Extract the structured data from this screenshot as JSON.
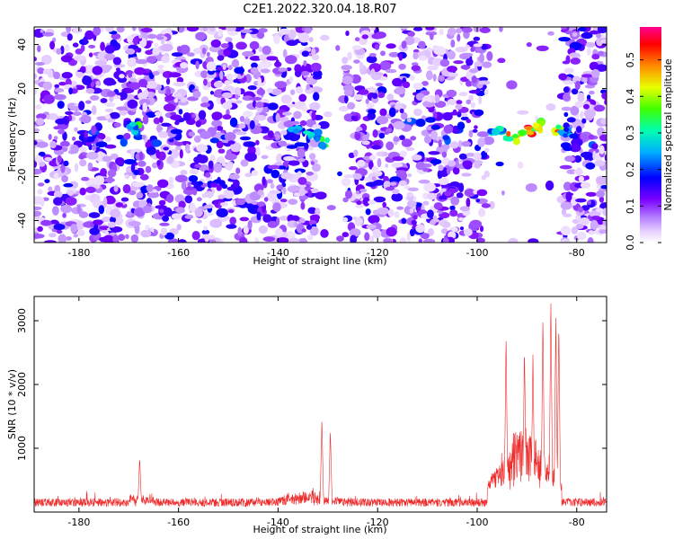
{
  "title": "C2E1.2022.320.04.18.R07",
  "chart_data": [
    {
      "type": "heatmap",
      "xlabel": "Height of straight line (km)",
      "ylabel": "Frequency (Hz)",
      "xlim": [
        -189,
        -74
      ],
      "ylim": [
        -50,
        48
      ],
      "xticks": [
        -180,
        -160,
        -140,
        -120,
        -100,
        -80
      ],
      "yticks": [
        -40,
        -20,
        0,
        20,
        40
      ],
      "colorbar": {
        "label": "Normalized spectral amplitude",
        "range": [
          0.0,
          0.59
        ],
        "ticks": [
          0.0,
          0.1,
          0.2,
          0.3,
          0.4,
          0.5
        ]
      },
      "gaps_km": [
        [
          -132,
          -127
        ],
        [
          -98,
          -83
        ]
      ],
      "hotspots": [
        {
          "x": -168.5,
          "y": 2,
          "level": 0.35
        },
        {
          "x": -152,
          "y": -24,
          "level": 0.18
        },
        {
          "x": -131,
          "y": -4,
          "level": 0.38
        },
        {
          "x": -133,
          "y": 0,
          "level": 0.3
        },
        {
          "x": -137,
          "y": 1,
          "level": 0.25
        },
        {
          "x": -106,
          "y": -28,
          "level": 0.15
        },
        {
          "x": -96,
          "y": 0,
          "level": 0.3
        },
        {
          "x": -93,
          "y": -2,
          "level": 0.5
        },
        {
          "x": -90,
          "y": 1,
          "level": 0.55
        },
        {
          "x": -87,
          "y": 3,
          "level": 0.45
        },
        {
          "x": -84,
          "y": 1,
          "level": 0.5
        },
        {
          "x": -82,
          "y": 0,
          "level": 0.3
        }
      ]
    },
    {
      "type": "line",
      "xlabel": "Height of straight line (km)",
      "ylabel": "SNR (10 * v/v)",
      "xlim": [
        -189,
        -74
      ],
      "ylim": [
        0,
        3380
      ],
      "xticks": [
        -180,
        -160,
        -140,
        -120,
        -100,
        -80
      ],
      "yticks": [
        1000,
        2000,
        3000
      ],
      "color": "#ee2b2b",
      "baseline": 150,
      "peaks": [
        {
          "x": -167.8,
          "y": 850
        },
        {
          "x": -131.2,
          "y": 1460
        },
        {
          "x": -129.5,
          "y": 1280
        },
        {
          "x": -94.2,
          "y": 2780
        },
        {
          "x": -90.5,
          "y": 2600
        },
        {
          "x": -88.8,
          "y": 2470
        },
        {
          "x": -86.8,
          "y": 3080
        },
        {
          "x": -85.2,
          "y": 3350
        },
        {
          "x": -84.2,
          "y": 3060
        },
        {
          "x": -83.6,
          "y": 2980
        }
      ]
    }
  ]
}
